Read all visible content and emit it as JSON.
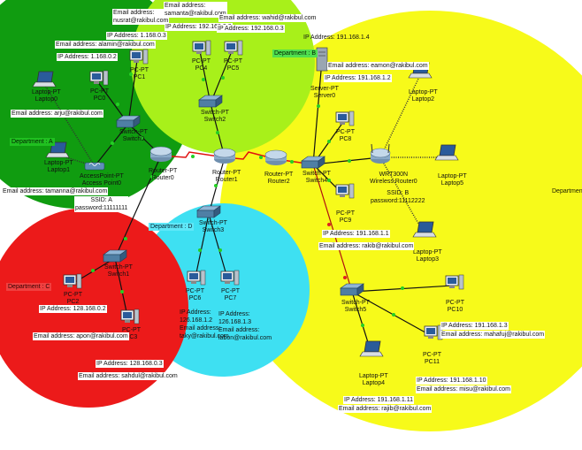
{
  "colors": {
    "zone_a": "#109c10",
    "zone_b": "#ffff4c",
    "zone_c": "#ec1a1a",
    "zone_d": "#3ee0f2",
    "zone_e": "#f7fa1a",
    "zone_top": "#a8f01a",
    "link": "#111111",
    "serial": "#e01010",
    "port_up": "#24d024",
    "port_down": "#e02020"
  },
  "departments": {
    "a": "Department : A",
    "b": "Department : B",
    "c": "Department : C",
    "d": "Department : D",
    "e": "Department : E"
  },
  "devices": {
    "router0": [
      "Router-PT",
      "Router0"
    ],
    "router1": [
      "Router-PT",
      "Router1"
    ],
    "router2": [
      "Router-PT",
      "Router2"
    ],
    "switch0": [
      "Switch-PT",
      "Switch0"
    ],
    "switch1": [
      "Switch-PT",
      "Switch1"
    ],
    "switch2": [
      "Switch-PT",
      "Switch2"
    ],
    "switch3": [
      "Switch-PT",
      "Switch3"
    ],
    "switch4": [
      "Switch-PT",
      "Switch4"
    ],
    "switch5": [
      "Switch-PT",
      "Switch5"
    ],
    "ap0": [
      "AccessPoint-PT",
      "Access Point0"
    ],
    "wrt": [
      "WRT300N",
      "Wireless Router0"
    ],
    "server0": [
      "Server-PT",
      "Server0"
    ],
    "laptop0": [
      "Laptop-PT",
      "Laptop0"
    ],
    "laptop1": [
      "Laptop-PT",
      "Laptop1"
    ],
    "laptop2": [
      "Laptop-PT",
      "Laptop2"
    ],
    "laptop3": [
      "Laptop-PT",
      "Laptop3"
    ],
    "laptop4": [
      "Laptop-PT",
      "Laptop4"
    ],
    "laptop5": [
      "Laptop-PT",
      "Laptop5"
    ],
    "pc0": [
      "PC-PT",
      "PC0"
    ],
    "pc1": [
      "PC-PT",
      "PC1"
    ],
    "pc2": [
      "PC-PT",
      "PC2"
    ],
    "pc3": [
      "PC-PT",
      "PC3"
    ],
    "pc4": [
      "PC-PT",
      "PC4"
    ],
    "pc5": [
      "PC-PT",
      "PC5"
    ],
    "pc6": [
      "PC-PT",
      "PC6"
    ],
    "pc7": [
      "PC-PT",
      "PC7"
    ],
    "pc8": [
      "PC-PT",
      "PC8"
    ],
    "pc9": [
      "PC-PT",
      "PC9"
    ],
    "pc10": [
      "PC-PT",
      "PC10"
    ],
    "pc11": [
      "PC-PT",
      "PC11"
    ]
  },
  "annotations": {
    "nusrat": [
      "Email address:",
      "nusrat@rakibul.com"
    ],
    "pc1_ip": "IP Address: 1.168.0.3",
    "alamin": "Email address: alamin@rakibul.com",
    "pc0_ip": "IP Address: 1.168.0.2",
    "arju": "Email address: arju@rakibul.com",
    "tamanna": "Email address: tamanna@rakibul.com",
    "ssid_a": [
      "SSID: A",
      "password:11111111"
    ],
    "samanta": [
      "Email address:",
      "samanta@rakibul.com"
    ],
    "wahid": "Email address: wahid@rakibul.com",
    "pc4_ip": "IP Address: 192.168.0.2",
    "pc5_ip": "IP Address: 192.168.0.3",
    "server_ip": "IP Address: 191.168.1.4",
    "eamon": "Email address: eamon@rakibul.com",
    "pc8_ip": "IP Address: 191.168.1.2",
    "ssid_b": [
      "SSID: B",
      "password:11112222"
    ],
    "pc9_ip": "IP Address: 191.168.1.1",
    "rakib": "Email address: rakib@rakibul.com",
    "pc10_ip": "IP Address: 191.168.1.3",
    "mahafuj": "Email address: mahafuj@rakibul.com",
    "pc11_ip": "IP Address: 191.168.1.10",
    "misu": "Email address: misu@rakibul.com",
    "pc2_ip": "IP Address: 128.168.0.2",
    "apon": "Email address: apon@rakibul.com",
    "pc3_ip": "IP Address: 128.168.0.3",
    "sahdul": "Email address: sahdul@rakibul.com",
    "pc6_ip": [
      "IP Address:",
      "126.168.1.2",
      "Email address:",
      "taky@rakibul.com"
    ],
    "pc7_ip": [
      "IP Address:",
      "126.168.1.3",
      "Email address:",
      "labon@rakibul.com"
    ],
    "laptop4_ip": "IP Address: 191.168.1.11",
    "rajib": "Email address: rajib@rakibul.com"
  }
}
